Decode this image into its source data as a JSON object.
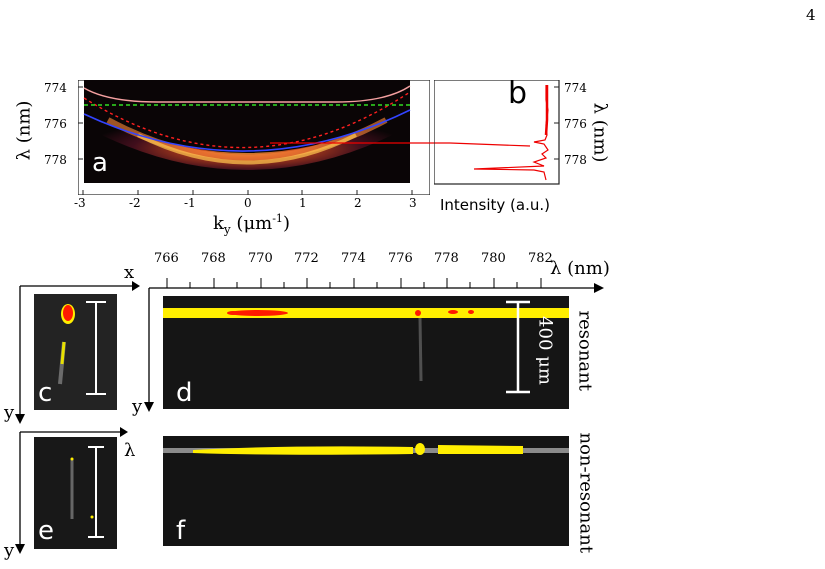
{
  "page_number": "4",
  "panel_a": {
    "letter": "a",
    "y_axis_label": "λ (nm)",
    "y_ticks": [
      "774",
      "776",
      "778"
    ],
    "x_ticks": [
      "-3",
      "-2",
      "-1",
      "0",
      "1",
      "2",
      "3"
    ],
    "x_axis_label_main": "k",
    "x_axis_label_sub": "y",
    "x_axis_label_rest": " (μm",
    "x_axis_label_sup": "-1",
    "x_axis_label_end": ")"
  },
  "panel_b": {
    "letter": "b",
    "y_axis_label": "λ (nm)",
    "y_ticks": [
      "774",
      "776",
      "778"
    ],
    "x_axis_label": "Intensity (a.u.)"
  },
  "panel_c": {
    "letter": "c",
    "axis_x": "x",
    "axis_y": "y"
  },
  "panel_d": {
    "letter": "d",
    "axis_y": "y",
    "wavelength_ticks": [
      "766",
      "768",
      "770",
      "772",
      "774",
      "776",
      "778",
      "780",
      "782"
    ],
    "wavelength_axis_label": "λ (nm)",
    "scale_bar_label": "400 μm",
    "side_label": "resonant"
  },
  "panel_e": {
    "letter": "e",
    "axis_x": "λ",
    "axis_y": "y"
  },
  "panel_f": {
    "letter": "f",
    "side_label": "non-resonant"
  },
  "colors": {
    "dispersion_dark": "#0a0506",
    "emission_yellow": "#ffee00",
    "emission_red": "#ff1a00",
    "lower_polariton_blue": "#3344ff",
    "upper_polariton": "#f4a0a0",
    "exciton_green": "#33dd22"
  }
}
